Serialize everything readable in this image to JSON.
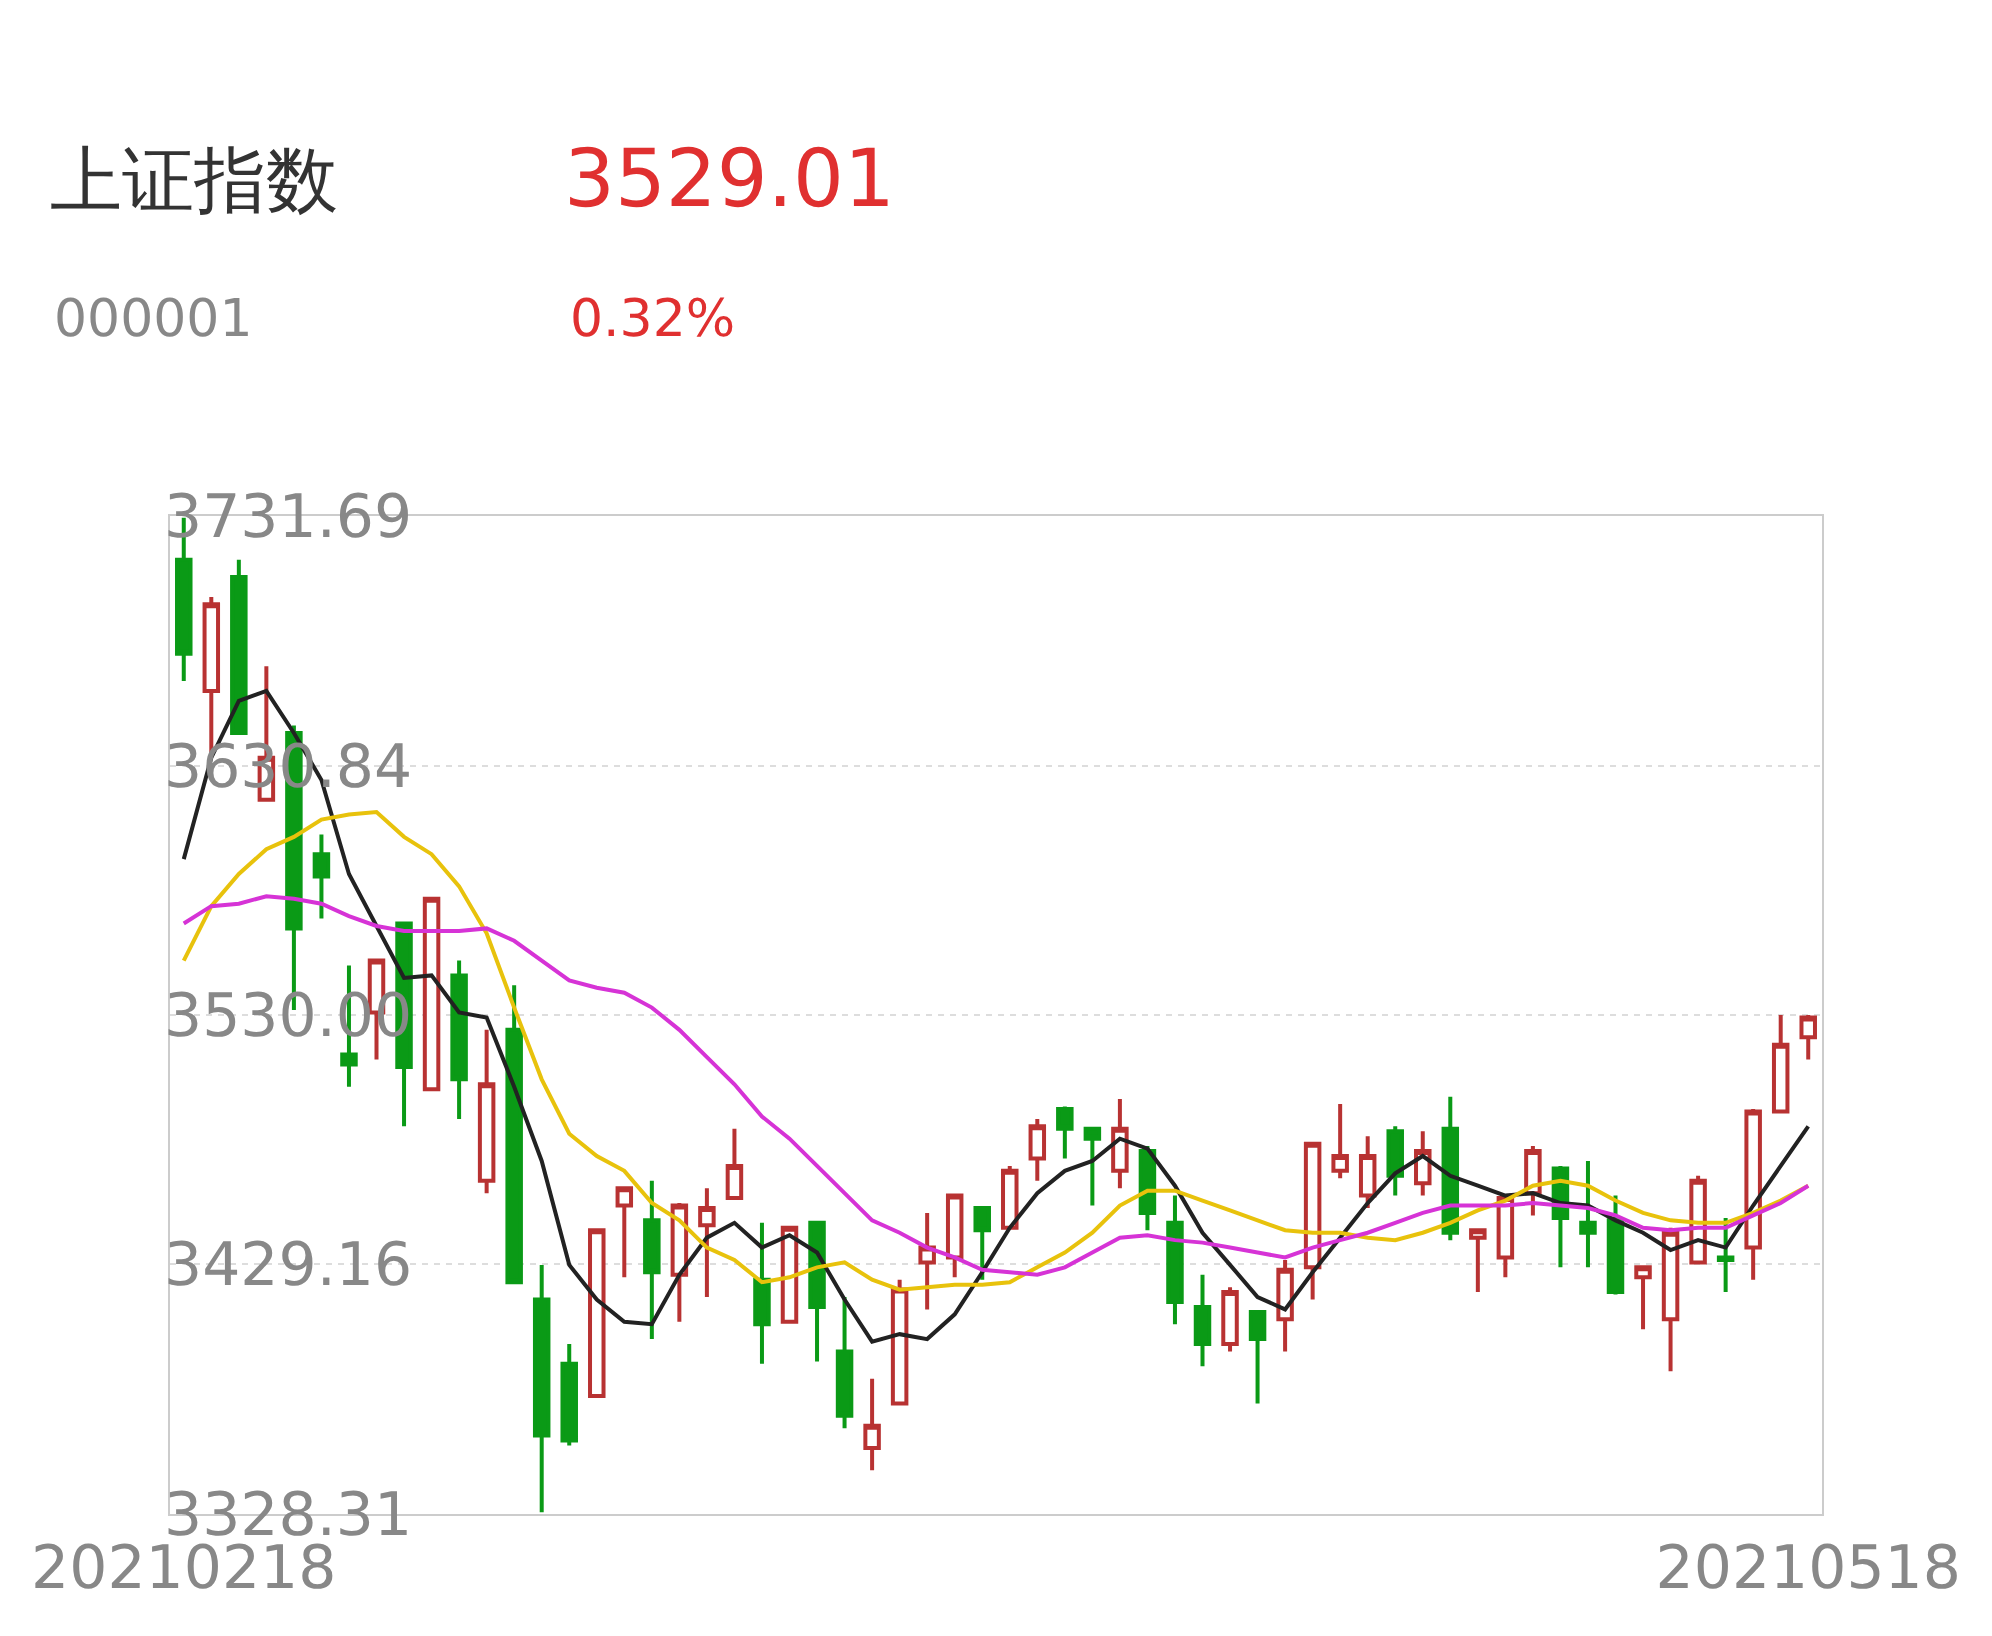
{
  "chart_data": {
    "type": "candlestick",
    "title": "上证指数",
    "annotations": [
      "3529.01",
      "000001",
      "0.32%"
    ],
    "categories": [
      "20210218",
      null,
      null,
      null,
      null,
      null,
      null,
      null,
      null,
      null,
      null,
      null,
      null,
      null,
      null,
      null,
      null,
      null,
      null,
      null,
      null,
      null,
      null,
      null,
      null,
      null,
      null,
      null,
      null,
      null,
      null,
      null,
      null,
      null,
      null,
      null,
      null,
      null,
      null,
      null,
      null,
      null,
      null,
      null,
      null,
      null,
      null,
      null,
      null,
      null,
      null,
      null,
      null,
      null,
      null,
      null,
      null,
      null,
      null,
      "20210518"
    ],
    "ohlc": [
      [
        3714,
        3731,
        3665,
        3676
      ],
      [
        3661,
        3699,
        3636,
        3696
      ],
      [
        3707,
        3714,
        3644,
        3644
      ],
      [
        3617,
        3671,
        3617,
        3634
      ],
      [
        3644,
        3647,
        3532,
        3565
      ],
      [
        3595,
        3603,
        3569,
        3586
      ],
      [
        3514,
        3550,
        3501,
        3510
      ],
      [
        3531,
        3552,
        3512,
        3552
      ],
      [
        3567,
        3567,
        3485,
        3509
      ],
      [
        3500,
        3577,
        3500,
        3577
      ],
      [
        3546,
        3552,
        3488,
        3504
      ],
      [
        3463,
        3524,
        3458,
        3502
      ],
      [
        3524,
        3542,
        3422,
        3422
      ],
      [
        3415,
        3429,
        3329,
        3360
      ],
      [
        3389,
        3397,
        3356,
        3358
      ],
      [
        3376,
        3443,
        3376,
        3443
      ],
      [
        3453,
        3460,
        3424,
        3460
      ],
      [
        3447,
        3463,
        3399,
        3426
      ],
      [
        3425,
        3454,
        3406,
        3453
      ],
      [
        3445,
        3460,
        3416,
        3452
      ],
      [
        3456,
        3484,
        3456,
        3469
      ],
      [
        3423,
        3446,
        3389,
        3405
      ],
      [
        3406,
        3444,
        3406,
        3444
      ],
      [
        3446,
        3446,
        3390,
        3412
      ],
      [
        3394,
        3416,
        3363,
        3368
      ],
      [
        3355,
        3383,
        3346,
        3364
      ],
      [
        3373,
        3423,
        3373,
        3419
      ],
      [
        3430,
        3450,
        3411,
        3436
      ],
      [
        3432,
        3457,
        3424,
        3457
      ],
      [
        3452,
        3452,
        3423,
        3443
      ],
      [
        3444,
        3469,
        3444,
        3467
      ],
      [
        3472,
        3488,
        3463,
        3485
      ],
      [
        3492,
        3493,
        3472,
        3484
      ],
      [
        3484,
        3484,
        3453,
        3480
      ],
      [
        3467,
        3496,
        3460,
        3484
      ],
      [
        3475,
        3477,
        3443,
        3450
      ],
      [
        3446,
        3457,
        3405,
        3414
      ],
      [
        3412,
        3425,
        3388,
        3397
      ],
      [
        3397,
        3420,
        3394,
        3418
      ],
      [
        3410,
        3410,
        3373,
        3399
      ],
      [
        3407,
        3431,
        3394,
        3427
      ],
      [
        3428,
        3478,
        3415,
        3478
      ],
      [
        3467,
        3494,
        3464,
        3473
      ],
      [
        3457,
        3481,
        3452,
        3473
      ],
      [
        3483,
        3485,
        3457,
        3465
      ],
      [
        3462,
        3483,
        3457,
        3475
      ],
      [
        3484,
        3497,
        3439,
        3442
      ],
      [
        3440,
        3443,
        3418,
        3443
      ],
      [
        3432,
        3457,
        3424,
        3456
      ],
      [
        3458,
        3477,
        3449,
        3475
      ],
      [
        3468,
        3469,
        3428,
        3448
      ],
      [
        3446,
        3471,
        3428,
        3442
      ],
      [
        3447,
        3457,
        3417,
        3418
      ],
      [
        3424,
        3428,
        3403,
        3428
      ],
      [
        3407,
        3444,
        3386,
        3442
      ],
      [
        3430,
        3465,
        3430,
        3463
      ],
      [
        3432,
        3448,
        3418,
        3431
      ],
      [
        3436,
        3492,
        3423,
        3491
      ],
      [
        3491,
        3530,
        3491,
        3518
      ],
      [
        3521,
        3530,
        3512,
        3529.01
      ]
    ],
    "colors": [
      "#0a9a16",
      "#b83232",
      "#0a9a16",
      "#b83232",
      "#0a9a16",
      "#0a9a16",
      "#0a9a16",
      "#b83232",
      "#0a9a16",
      "#b83232",
      "#0a9a16",
      "#b83232",
      "#0a9a16",
      "#0a9a16",
      "#0a9a16",
      "#b83232",
      "#b83232",
      "#0a9a16",
      "#b83232",
      "#b83232",
      "#b83232",
      "#0a9a16",
      "#b83232",
      "#0a9a16",
      "#0a9a16",
      "#b83232",
      "#b83232",
      "#b83232",
      "#b83232",
      "#0a9a16",
      "#b83232",
      "#b83232",
      "#0a9a16",
      "#0a9a16",
      "#b83232",
      "#0a9a16",
      "#0a9a16",
      "#0a9a16",
      "#b83232",
      "#0a9a16",
      "#b83232",
      "#b83232",
      "#b83232",
      "#b83232",
      "#0a9a16",
      "#b83232",
      "#0a9a16",
      "#b83232",
      "#b83232",
      "#b83232",
      "#0a9a16",
      "#0a9a16",
      "#0a9a16",
      "#b83232",
      "#b83232",
      "#b83232",
      "#0a9a16",
      "#b83232",
      "#b83232",
      "#b83232"
    ],
    "series": [
      {
        "type": "line",
        "color": "#222222",
        "values": [
          3593,
          3634,
          3657,
          3661,
          3644,
          3625,
          3587,
          3566,
          3545,
          3546,
          3531,
          3529,
          3501,
          3471,
          3429,
          3415,
          3406,
          3405,
          3425,
          3440,
          3446,
          3436,
          3441,
          3434,
          3415,
          3398,
          3401,
          3399,
          3409,
          3426,
          3444,
          3458,
          3467,
          3471,
          3480,
          3476,
          3461,
          3442,
          3429,
          3416,
          3411,
          3426,
          3440,
          3454,
          3466,
          3473,
          3465,
          3461,
          3457,
          3458,
          3454,
          3453,
          3447,
          3442,
          3435,
          3439,
          3436,
          3453,
          3469,
          3485
        ]
      },
      {
        "type": "line",
        "color": "#e8c20c",
        "values": [
          3552,
          3574,
          3587,
          3597,
          3602,
          3609,
          3611,
          3612,
          3602,
          3595,
          3582,
          3563,
          3533,
          3504,
          3482,
          3473,
          3467,
          3454,
          3447,
          3436,
          3431,
          3422,
          3424,
          3428,
          3430,
          3423,
          3419,
          3420,
          3421,
          3421,
          3422,
          3428,
          3434,
          3442,
          3453,
          3459,
          3459,
          3455,
          3451,
          3447,
          3443,
          3442,
          3442,
          3440,
          3439,
          3442,
          3446,
          3451,
          3455,
          3461,
          3463,
          3461,
          3455,
          3450,
          3447,
          3446,
          3446,
          3450,
          3455,
          3461
        ]
      },
      {
        "type": "line",
        "color": "#d633d6",
        "values": [
          3567,
          3574,
          3575,
          3578,
          3577,
          3575,
          3570,
          3566,
          3564,
          3564,
          3564,
          3565,
          3560,
          3552,
          3544,
          3541,
          3539,
          3533,
          3524,
          3513,
          3502,
          3489,
          3480,
          3469,
          3458,
          3447,
          3442,
          3436,
          3432,
          3427,
          3426,
          3425,
          3428,
          3434,
          3440,
          3441,
          3439,
          3438,
          3436,
          3434,
          3432,
          3436,
          3439,
          3442,
          3446,
          3450,
          3453,
          3453,
          3453,
          3454,
          3453,
          3452,
          3449,
          3444,
          3443,
          3444,
          3444,
          3449,
          3454,
          3461
        ]
      }
    ],
    "ylim": [
      3328.31,
      3731.69
    ],
    "yticks": [
      3328.31,
      3429.16,
      {
        "value": 3530.0,
        "label": "3530.00"
      },
      3630.84,
      3731.69
    ],
    "grid": "y"
  }
}
